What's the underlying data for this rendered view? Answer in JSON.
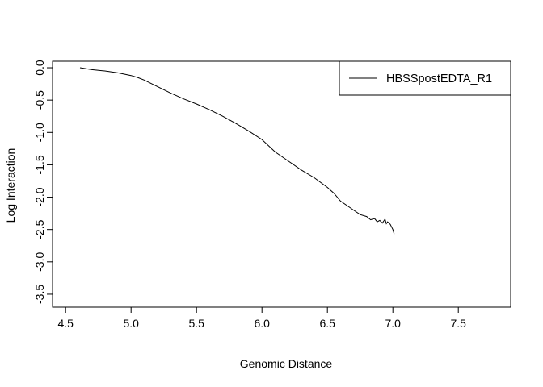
{
  "chart_data": {
    "type": "line",
    "title": "",
    "xlabel": "Genomic Distance",
    "ylabel": "Log Interaction",
    "xlim": [
      4.4,
      7.9
    ],
    "ylim": [
      -3.7,
      0.1
    ],
    "x_ticks": [
      4.5,
      5.0,
      5.5,
      6.0,
      6.5,
      7.0,
      7.5
    ],
    "x_tick_labels": [
      "4.5",
      "5.0",
      "5.5",
      "6.0",
      "6.5",
      "7.0",
      "7.5"
    ],
    "y_ticks": [
      0.0,
      -0.5,
      -1.0,
      -1.5,
      -2.0,
      -2.5,
      -3.0,
      -3.5
    ],
    "y_tick_labels": [
      "0.0",
      "-0.5",
      "-1.0",
      "-1.5",
      "-2.0",
      "-2.5",
      "-3.0",
      "-3.5"
    ],
    "grid": false,
    "legend_position": "top-right",
    "series": [
      {
        "name": "HBSSpostEDTA_R1",
        "color": "#000000",
        "x": [
          4.61,
          4.7,
          4.8,
          4.9,
          5.0,
          5.05,
          5.1,
          5.2,
          5.3,
          5.4,
          5.5,
          5.6,
          5.7,
          5.8,
          5.9,
          6.0,
          6.1,
          6.2,
          6.3,
          6.4,
          6.5,
          6.55,
          6.6,
          6.65,
          6.7,
          6.75,
          6.8,
          6.83,
          6.86,
          6.88,
          6.9,
          6.92,
          6.94,
          6.95,
          6.96,
          6.98,
          7.0,
          7.01
        ],
        "y": [
          0.0,
          -0.03,
          -0.05,
          -0.08,
          -0.12,
          -0.15,
          -0.19,
          -0.29,
          -0.39,
          -0.48,
          -0.56,
          -0.65,
          -0.75,
          -0.86,
          -0.98,
          -1.11,
          -1.3,
          -1.44,
          -1.58,
          -1.7,
          -1.85,
          -1.94,
          -2.06,
          -2.13,
          -2.2,
          -2.27,
          -2.3,
          -2.35,
          -2.33,
          -2.38,
          -2.36,
          -2.4,
          -2.34,
          -2.41,
          -2.38,
          -2.42,
          -2.5,
          -2.57
        ]
      }
    ]
  }
}
